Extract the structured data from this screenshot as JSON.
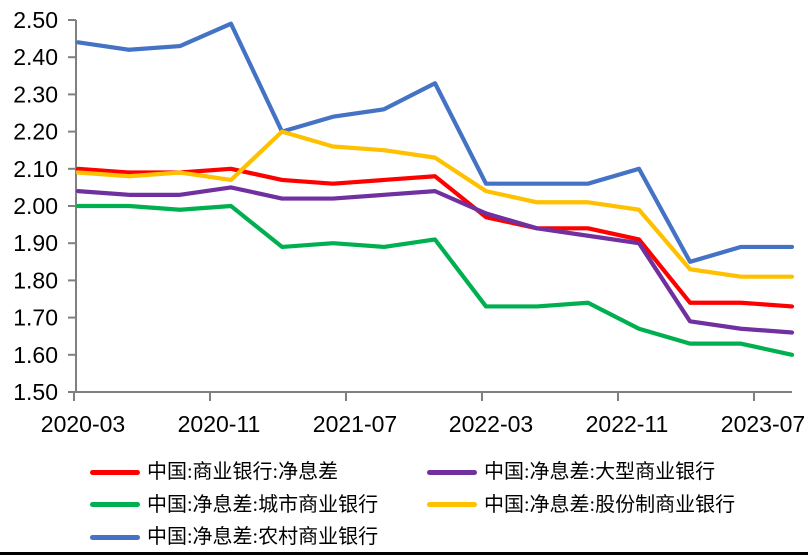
{
  "page": {
    "background": "#ffffff",
    "divider_color": "#000000",
    "axis_color": "#808080",
    "label_color": "#000000"
  },
  "chart_data": {
    "type": "line",
    "title": "",
    "xlabel": "",
    "ylabel": "",
    "grid": false,
    "legend_position": "bottom",
    "x": [
      "2020-03",
      "2020-06",
      "2020-09",
      "2020-12",
      "2021-03",
      "2021-06",
      "2021-09",
      "2021-12",
      "2022-03",
      "2022-06",
      "2022-09",
      "2022-12",
      "2023-03",
      "2023-06",
      "2023-09"
    ],
    "x_axis": {
      "months_span": 42,
      "tick_labels": [
        {
          "label": "2020-03",
          "month": 0
        },
        {
          "label": "2020-11",
          "month": 8
        },
        {
          "label": "2021-07",
          "month": 16
        },
        {
          "label": "2022-03",
          "month": 24
        },
        {
          "label": "2022-11",
          "month": 32
        },
        {
          "label": "2023-07",
          "month": 40
        }
      ]
    },
    "y_axis": {
      "min": 1.5,
      "max": 2.5,
      "step": 0.1,
      "tick_labels": [
        "2.50",
        "2.40",
        "2.30",
        "2.20",
        "2.10",
        "2.00",
        "1.90",
        "1.80",
        "1.70",
        "1.60",
        "1.50"
      ]
    },
    "series": [
      {
        "id": "commercial-banks",
        "name": "中国:商业银行:净息差",
        "color": "#FF0000",
        "values": [
          2.1,
          2.09,
          2.09,
          2.1,
          2.07,
          2.06,
          2.07,
          2.08,
          1.97,
          1.94,
          1.94,
          1.91,
          1.74,
          1.74,
          1.73
        ]
      },
      {
        "id": "city-commercial-banks",
        "name": "中国:净息差:城市商业银行",
        "color": "#00B050",
        "values": [
          2.0,
          2.0,
          1.99,
          2.0,
          1.89,
          1.9,
          1.89,
          1.91,
          1.73,
          1.73,
          1.74,
          1.67,
          1.63,
          1.63,
          1.6
        ]
      },
      {
        "id": "rural-commercial-banks",
        "name": "中国:净息差:农村商业银行",
        "color": "#4472C4",
        "values": [
          2.44,
          2.42,
          2.43,
          2.49,
          2.2,
          2.24,
          2.26,
          2.33,
          2.06,
          2.06,
          2.06,
          2.1,
          1.85,
          1.89,
          1.89
        ]
      },
      {
        "id": "large-commercial-banks",
        "name": "中国:净息差:大型商业银行",
        "color": "#7030A0",
        "values": [
          2.04,
          2.03,
          2.03,
          2.05,
          2.02,
          2.02,
          2.03,
          2.04,
          1.98,
          1.94,
          1.92,
          1.9,
          1.69,
          1.67,
          1.66
        ]
      },
      {
        "id": "joint-stock-commercial-banks",
        "name": "中国:净息差:股份制商业银行",
        "color": "#FFC000",
        "values": [
          2.09,
          2.08,
          2.09,
          2.07,
          2.2,
          2.16,
          2.15,
          2.13,
          2.04,
          2.01,
          2.01,
          1.99,
          1.83,
          1.81,
          1.81
        ]
      }
    ],
    "legend_columns": [
      [
        "commercial-banks",
        "city-commercial-banks",
        "rural-commercial-banks"
      ],
      [
        "large-commercial-banks",
        "joint-stock-commercial-banks"
      ]
    ]
  }
}
